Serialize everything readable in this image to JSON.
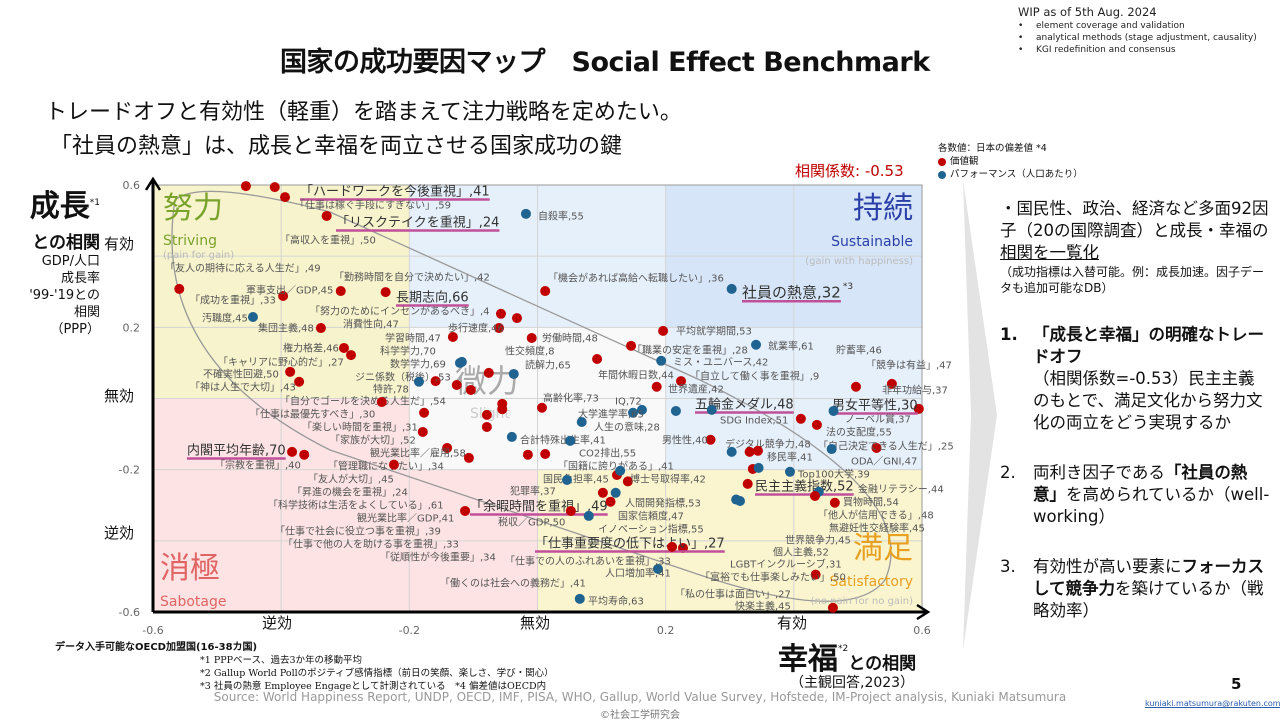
{
  "header": {
    "title": "国家の成功要因マップ　Social Effect Benchmark",
    "wip_title": "WIP as of 5th Aug. 2024",
    "wip_items": [
      "element coverage and validation",
      "analytical methods (stage adjustment, causality)",
      "KGI redefinition and consensus"
    ]
  },
  "subtitle": [
    "トレードオフと有効性（軽重）を踏まえて注力戦略を定めたい。",
    "「社員の熱意」は、成長と幸福を両立させる国家成功の鍵"
  ],
  "legend": {
    "title": "各数値：日本の偏差値 *4",
    "value": "価値観",
    "performance": "パフォーマンス（人口あたり）",
    "colors": {
      "value": "#c00000",
      "performance": "#1f6391"
    }
  },
  "correlation": "相関係数: -0.53",
  "y_axis": {
    "title": "成長",
    "title_note": "*1",
    "sub": "との相関",
    "desc": [
      "GDP/人口",
      "成長率",
      "'99-'19との",
      "相関",
      "（PPP）"
    ],
    "levels": [
      "有効",
      "無効",
      "逆効"
    ]
  },
  "x_axis": {
    "title": "幸福",
    "title_note": "*2",
    "sub": "との相関",
    "desc": "（主観回答,2023）",
    "levels": [
      "逆効",
      "無効",
      "有効"
    ]
  },
  "quadrants": {
    "striving": {
      "jp": "努力",
      "en": "Striving",
      "note": "(pain for gain)",
      "color": "#7aa32b"
    },
    "sustainable": {
      "jp": "持続",
      "en": "Sustainable",
      "note": "(gain with happiness)",
      "color": "#2b3fa8"
    },
    "slight": {
      "jp": "微力",
      "en": "Slight",
      "color": "#aaaaaa"
    },
    "sabotage": {
      "jp": "消極",
      "en": "Sabotage",
      "color": "#e06464"
    },
    "satisfactory": {
      "jp": "満足",
      "en": "Satisfactory",
      "note": "(no pain for no gain)",
      "color": "#e8a020"
    }
  },
  "chart_data": {
    "type": "scatter",
    "xlim": [
      -0.6,
      0.6
    ],
    "ylim": [
      -0.6,
      0.6
    ],
    "xticks": [
      "-0.6",
      "-0.2",
      "0.2",
      "0.6"
    ],
    "yticks": [
      "0.6",
      "0.2",
      "-0.2",
      "-0.6"
    ],
    "grid": true,
    "points": [
      {
        "label": "「高収入を重視」,50",
        "x": -0.455,
        "y": 0.597,
        "type": "value"
      },
      {
        "label": "「ハードワークを今後重視」,41",
        "x": -0.41,
        "y": 0.594,
        "type": "value",
        "highlight": true
      },
      {
        "label": "「仕事は稼ぐ手段にすぎない」,59",
        "x": -0.394,
        "y": 0.566,
        "type": "value"
      },
      {
        "label": "「リスクテイクを重視」,24",
        "x": -0.329,
        "y": 0.513,
        "type": "value",
        "highlight": true
      },
      {
        "label": "自殺率,55",
        "x": -0.018,
        "y": 0.519,
        "type": "performance"
      },
      {
        "label": "「友人の期待に応える人生だ」,49",
        "x": -0.559,
        "y": 0.308,
        "type": "value"
      },
      {
        "label": "「成功を重視」,33",
        "x": -0.397,
        "y": 0.288,
        "type": "value"
      },
      {
        "label": "軍事支出／GDP,45",
        "x": -0.307,
        "y": 0.302,
        "type": "value"
      },
      {
        "label": "長期志向,66",
        "x": -0.237,
        "y": 0.299,
        "type": "value",
        "highlight": true
      },
      {
        "label": "「勤務時間を自分で決めたい」,42",
        "x": -0.032,
        "y": 0.226,
        "type": "value"
      },
      {
        "label": "「機会があれば高給へ転職したい」,36",
        "x": 0.012,
        "y": 0.302,
        "type": "value"
      },
      {
        "label": "社員の熱意,32",
        "x": 0.303,
        "y": 0.308,
        "type": "performance",
        "highlight": true,
        "note": "*3"
      },
      {
        "label": "汚職度,45",
        "x": -0.444,
        "y": 0.229,
        "type": "performance"
      },
      {
        "label": "「努力のためにインセンがあるべき」,4",
        "x": -0.057,
        "y": 0.238,
        "type": "value"
      },
      {
        "label": "歩行速度,46",
        "x": -0.06,
        "y": 0.198,
        "type": "value"
      },
      {
        "label": "集団主義,48",
        "x": -0.338,
        "y": 0.198,
        "type": "value"
      },
      {
        "label": "消費性向,47",
        "x": -0.126,
        "y": 0.038,
        "type": "value"
      },
      {
        "label": "学習時間,47",
        "x": -0.132,
        "y": 0.173,
        "type": "value"
      },
      {
        "label": "労働時間,48",
        "x": -0.009,
        "y": 0.17,
        "type": "value"
      },
      {
        "label": "平均就学期間,53",
        "x": 0.196,
        "y": 0.19,
        "type": "value"
      },
      {
        "label": "就業率,61",
        "x": 0.341,
        "y": 0.151,
        "type": "performance"
      },
      {
        "label": "権力格差,46",
        "x": -0.302,
        "y": 0.142,
        "type": "value"
      },
      {
        "label": "科学学力,70",
        "x": -0.121,
        "y": 0.1,
        "type": "performance"
      },
      {
        "label": "「職業の安定を重視」,28",
        "x": 0.146,
        "y": 0.148,
        "type": "value"
      },
      {
        "label": "性交頻度,8",
        "x": -0.076,
        "y": 0.072,
        "type": "value"
      },
      {
        "label": "貯蓄率,46",
        "x": 0.411,
        "y": -0.057,
        "type": "value"
      },
      {
        "label": "「キャリアに野心的だ」,27",
        "x": -0.291,
        "y": 0.122,
        "type": "value"
      },
      {
        "label": "数学学力,69",
        "x": -0.118,
        "y": 0.103,
        "type": "performance"
      },
      {
        "label": "読解力,65",
        "x": -0.037,
        "y": 0.069,
        "type": "performance"
      },
      {
        "label": "ミス・ユニバース,42",
        "x": 0.193,
        "y": 0.106,
        "type": "performance"
      },
      {
        "label": "「競争は有益」,47",
        "x": 0.497,
        "y": 0.033,
        "type": "value"
      },
      {
        "label": "年間休暇日数,44",
        "x": 0.093,
        "y": 0.111,
        "type": "value"
      },
      {
        "label": "ジニ係数（税後）,53",
        "x": -0.159,
        "y": 0.049,
        "type": "value"
      },
      {
        "label": "不確実性回避,50",
        "x": -0.386,
        "y": 0.075,
        "type": "value"
      },
      {
        "label": "「自立して働く事を重視」,9",
        "x": 0.224,
        "y": 0.049,
        "type": "value"
      },
      {
        "label": "特許,78",
        "x": -0.185,
        "y": 0.047,
        "type": "performance"
      },
      {
        "label": "「神は人生で大切」,43",
        "x": -0.372,
        "y": 0.047,
        "type": "value"
      },
      {
        "label": "世界遺産,42",
        "x": 0.186,
        "y": 0.033,
        "type": "value"
      },
      {
        "label": "非年功給与,37",
        "x": 0.553,
        "y": 0.041,
        "type": "value"
      },
      {
        "label": "「自分でゴールを決める人生だ」,54",
        "x": -0.104,
        "y": 0.024,
        "type": "value"
      },
      {
        "label": "高齢化率,73",
        "x": 0.007,
        "y": -0.026,
        "type": "value"
      },
      {
        "label": "IQ,72",
        "x": 0.163,
        "y": -0.032,
        "type": "performance"
      },
      {
        "label": "五輪金メダル,48",
        "x": 0.216,
        "y": -0.035,
        "type": "performance",
        "highlight": true
      },
      {
        "label": "男女平等性,30",
        "x": 0.595,
        "y": -0.029,
        "type": "value",
        "highlight": true
      },
      {
        "label": "「仕事は最優先すべき」,30",
        "x": -0.243,
        "y": -0.01,
        "type": "value"
      },
      {
        "label": "大学進学率,65",
        "x": 0.149,
        "y": -0.04,
        "type": "performance"
      },
      {
        "label": "SDG Index,51",
        "x": 0.272,
        "y": -0.032,
        "type": "performance"
      },
      {
        "label": "「楽しい時間を重視」,31",
        "x": -0.177,
        "y": -0.04,
        "type": "value"
      },
      {
        "label": "人生の意味,28",
        "x": 0.069,
        "y": -0.066,
        "type": "performance"
      },
      {
        "label": "ノーベル賞,37",
        "x": 0.462,
        "y": -0.035,
        "type": "performance"
      },
      {
        "label": "法の支配度,55",
        "x": 0.436,
        "y": -0.074,
        "type": "value"
      },
      {
        "label": "「家族が大切」,52",
        "x": -0.179,
        "y": -0.094,
        "type": "value"
      },
      {
        "label": "合計特殊出生率,41",
        "x": -0.04,
        "y": -0.108,
        "type": "performance"
      },
      {
        "label": "「自己決定できる人生だ」,25",
        "x": 0.529,
        "y": -0.139,
        "type": "value"
      },
      {
        "label": "観光業比率／雇用,58",
        "x": -0.141,
        "y": -0.139,
        "type": "value"
      },
      {
        "label": "男性性,40",
        "x": 0.27,
        "y": -0.116,
        "type": "value"
      },
      {
        "label": "CO2排出,55",
        "x": 0.051,
        "y": -0.119,
        "type": "performance"
      },
      {
        "label": "デジタル競争力,48",
        "x": 0.303,
        "y": -0.15,
        "type": "performance"
      },
      {
        "label": "ODA／GNI,47",
        "x": 0.459,
        "y": -0.142,
        "type": "performance"
      },
      {
        "label": "内閣平均年齢,70",
        "x": -0.383,
        "y": -0.15,
        "type": "value",
        "highlight": true
      },
      {
        "label": "移民率,41",
        "x": 0.344,
        "y": -0.147,
        "type": "value"
      },
      {
        "label": "「管理職になりたい」,34",
        "x": -0.107,
        "y": -0.167,
        "type": "value"
      },
      {
        "label": "「国籍に誇りがある」,41",
        "x": 0.141,
        "y": -0.233,
        "type": "value"
      },
      {
        "label": "「宗教を重視」,40",
        "x": -0.364,
        "y": -0.158,
        "type": "value"
      },
      {
        "label": "「友人が大切」,45",
        "x": -0.224,
        "y": -0.186,
        "type": "value"
      },
      {
        "label": "国民負担率,45",
        "x": 0.124,
        "y": -0.215,
        "type": "value"
      },
      {
        "label": "博士号取得率,42",
        "x": 0.129,
        "y": -0.203,
        "type": "performance"
      },
      {
        "label": "Top100大学,39",
        "x": 0.394,
        "y": -0.206,
        "type": "performance"
      },
      {
        "label": "犯罪率,37",
        "x": 0.046,
        "y": -0.229,
        "type": "performance"
      },
      {
        "label": "「昇進の機会を重視」,24",
        "x": -0.079,
        "y": -0.046,
        "type": "value"
      },
      {
        "label": "民主主義指数,52",
        "x": 0.328,
        "y": -0.24,
        "type": "value",
        "highlight": true
      },
      {
        "label": "金融リテラシー,44",
        "x": 0.439,
        "y": -0.262,
        "type": "performance"
      },
      {
        "label": "「余暇時間を重視」,49",
        "x": 0.102,
        "y": -0.265,
        "type": "value",
        "highlight": true
      },
      {
        "label": "人間開発指標,53",
        "x": 0.122,
        "y": -0.265,
        "type": "performance"
      },
      {
        "label": "「科学技術は生活をよくしている」,61",
        "x": -0.055,
        "y": -0.015,
        "type": "value"
      },
      {
        "label": "買物時間,54",
        "x": 0.464,
        "y": -0.293,
        "type": "value"
      },
      {
        "label": "国家信頼度,47",
        "x": 0.114,
        "y": -0.29,
        "type": "value"
      },
      {
        "label": "「他人が信用できる」,48",
        "x": 0.433,
        "y": -0.274,
        "type": "value"
      },
      {
        "label": "観光業比率／GDP,41",
        "x": -0.113,
        "y": -0.316,
        "type": "value"
      },
      {
        "label": "税収／GDP,50",
        "x": 0.052,
        "y": -0.316,
        "type": "value"
      },
      {
        "label": "イノベーション指標,55",
        "x": 0.08,
        "y": -0.33,
        "type": "performance"
      },
      {
        "label": "無避妊性交経験率,45",
        "x": 0.336,
        "y": -0.198,
        "type": "value"
      },
      {
        "label": "「仕事で社会に役立つ事を重視」,39",
        "x": -0.079,
        "y": -0.08,
        "type": "value"
      },
      {
        "label": "「仕事で他の人を助ける事を重視」,33",
        "x": -0.055,
        "y": -0.03,
        "type": "value"
      },
      {
        "label": "「従順性が今後重要」,34",
        "x": -0.015,
        "y": -0.158,
        "type": "value"
      },
      {
        "label": "「仕事重要度の低下はよい」,27",
        "x": 0.227,
        "y": -0.42,
        "type": "value",
        "highlight": true
      },
      {
        "label": "LGBTインクルーシブ,31",
        "x": 0.316,
        "y": -0.288,
        "type": "performance"
      },
      {
        "label": "個人主義,52",
        "x": 0.345,
        "y": -0.195,
        "type": "performance"
      },
      {
        "label": "世界競争力,45",
        "x": 0.31,
        "y": -0.284,
        "type": "performance"
      },
      {
        "label": "人口増加率,41",
        "x": 0.188,
        "y": -0.479,
        "type": "performance"
      },
      {
        "label": "「働くのは社会への義務だ」,41",
        "x": 0.012,
        "y": -0.156,
        "type": "value"
      },
      {
        "label": "平均寿命,63",
        "x": 0.066,
        "y": -0.563,
        "type": "performance"
      },
      {
        "label": "「私の仕事は面白い」,27",
        "x": 0.434,
        "y": -0.495,
        "type": "value"
      },
      {
        "label": "快楽主義,45",
        "x": 0.461,
        "y": -0.588,
        "type": "value"
      },
      {
        "label": "「仕事での人のふれあいを重視」,33",
        "x": 0.21,
        "y": -0.417,
        "type": "value"
      },
      {
        "label": "「富裕でも仕事楽しみたい」,50",
        "x": 0.331,
        "y": -0.15,
        "type": "value"
      }
    ]
  },
  "right_panel": {
    "intro": "・国民性、政治、経済など多面92因子（20の国際調査）と成長・幸福の",
    "intro_ul": "相関を一覧化",
    "intro_small": "（成功指標は入替可能。例：成長加速。因子データも追加可能なDB）",
    "items": [
      {
        "num": "1.",
        "bold": "「成長と幸福」の明確なトレードオフ",
        "text": "（相関係数=-0.53）民主主義のもとで、満足文化から努力文化の両立をどう実現するか"
      },
      {
        "num": "2.",
        "pre": "両利き因子である",
        "bold": "「社員の熱意」",
        "text": "を高められているか（well-working）"
      },
      {
        "num": "3.",
        "pre": "有効性が高い要素に",
        "bold": "フォーカスして競争力",
        "text": "を築けているか（戦略効率）"
      }
    ]
  },
  "footer": {
    "sample": "データ入手可能なOECD加盟国(16-38カ国)",
    "notes": [
      "*1 PPPベース、過去3か年の移動平均",
      "*2 Gallup World Pollのポジティブ感情指標（前日の笑顔、楽しさ、学び・関心）",
      "*3 社員の熱意 Employee Engageとして計測されている　*4 偏差値はOECD内"
    ],
    "source": "Source: World Happiness Report, UNDP, OECD, IMF, PISA, WHO, Gallup, World Value Survey, Hofstede, IM-Project analysis, Kuniaki Matsumura",
    "copyright": "©社会工学研究会",
    "page": "5",
    "email": "kuniaki.matsumura@rakuten.com"
  }
}
